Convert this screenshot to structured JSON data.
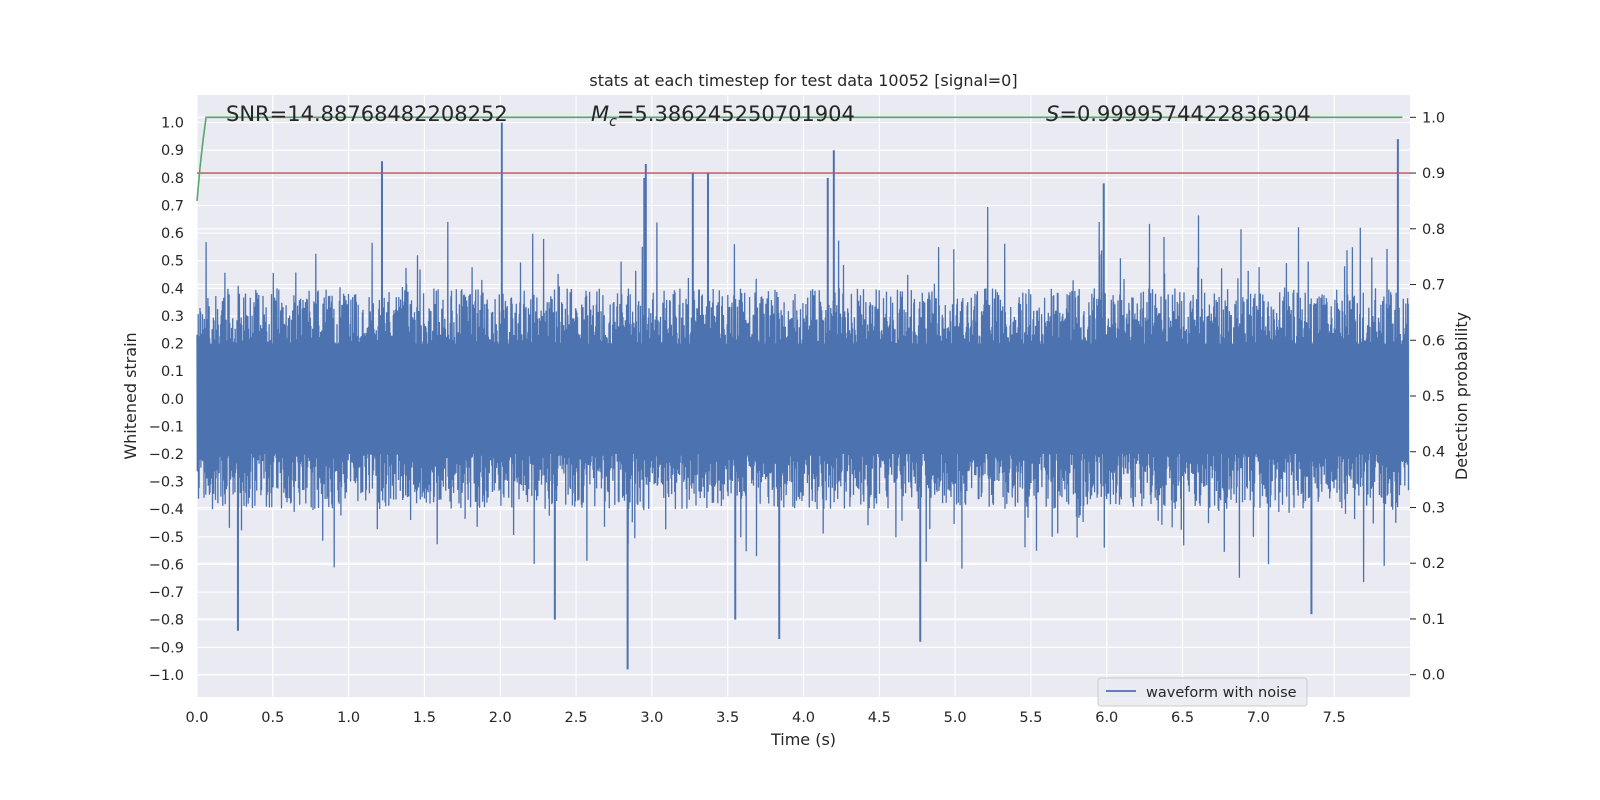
{
  "chart_data": {
    "type": "line",
    "title": "stats at each timestep for test data 10052 [signal=0]",
    "xlabel": "Time (s)",
    "ylabel": "Whitened strain",
    "y2label": "Detection probability",
    "xlim": [
      0.0,
      8.0
    ],
    "ylim": [
      -1.08,
      1.1
    ],
    "y2lim": [
      -0.04,
      1.04
    ],
    "xticks": [
      0.0,
      0.5,
      1.0,
      1.5,
      2.0,
      2.5,
      3.0,
      3.5,
      4.0,
      4.5,
      5.0,
      5.5,
      6.0,
      6.5,
      7.0,
      7.5
    ],
    "xtick_labels": [
      "0.0",
      "0.5",
      "1.0",
      "1.5",
      "2.0",
      "2.5",
      "3.0",
      "3.5",
      "4.0",
      "4.5",
      "5.0",
      "5.5",
      "6.0",
      "6.5",
      "7.0",
      "7.5"
    ],
    "yticks": [
      -1.0,
      -0.9,
      -0.8,
      -0.7,
      -0.6,
      -0.5,
      -0.4,
      -0.3,
      -0.2,
      -0.1,
      0.0,
      0.1,
      0.2,
      0.3,
      0.4,
      0.5,
      0.6,
      0.7,
      0.8,
      0.9,
      1.0
    ],
    "ytick_labels": [
      "−1.0",
      "−0.9",
      "−0.8",
      "−0.7",
      "−0.6",
      "−0.5",
      "−0.4",
      "−0.3",
      "−0.2",
      "−0.1",
      "0.0",
      "0.1",
      "0.2",
      "0.3",
      "0.4",
      "0.5",
      "0.6",
      "0.7",
      "0.8",
      "0.9",
      "1.0"
    ],
    "y2ticks": [
      0.0,
      0.1,
      0.2,
      0.3,
      0.4,
      0.5,
      0.6,
      0.7,
      0.8,
      0.9,
      1.0
    ],
    "y2tick_labels": [
      "0.0",
      "0.1",
      "0.2",
      "0.3",
      "0.4",
      "0.5",
      "0.6",
      "0.7",
      "0.8",
      "0.9",
      "1.0"
    ],
    "grid": true,
    "legend": {
      "entries": [
        "waveform with noise"
      ],
      "position": "lower-right"
    },
    "annotations": {
      "snr": "SNR=14.88768482208252",
      "mc_symbol": "M",
      "mc_subscript": "c",
      "mc_value": "=5.386245250701904",
      "s_symbol": "S",
      "s_value": "=0.9999574422836304"
    },
    "series": [
      {
        "name": "waveform with noise",
        "axis": "left",
        "style": "dense-noise",
        "color": "#4c72b0",
        "duration": 7.99,
        "core_amplitude": 0.2,
        "typical_envelope": 0.4,
        "peaks": [
          {
            "x": 1.22,
            "y": 0.86
          },
          {
            "x": 2.01,
            "y": 1.0
          },
          {
            "x": 2.96,
            "y": 0.85
          },
          {
            "x": 2.95,
            "y": 0.8
          },
          {
            "x": 3.27,
            "y": 0.82
          },
          {
            "x": 3.37,
            "y": 0.82
          },
          {
            "x": 4.16,
            "y": 0.8
          },
          {
            "x": 4.2,
            "y": 0.9
          },
          {
            "x": 5.98,
            "y": 0.78
          },
          {
            "x": 7.92,
            "y": 0.94
          },
          {
            "x": 0.27,
            "y": -0.84
          },
          {
            "x": 2.36,
            "y": -0.8
          },
          {
            "x": 2.84,
            "y": -0.98
          },
          {
            "x": 3.55,
            "y": -0.8
          },
          {
            "x": 3.84,
            "y": -0.87
          },
          {
            "x": 4.77,
            "y": -0.88
          },
          {
            "x": 7.35,
            "y": -0.78
          }
        ]
      },
      {
        "name": "detection probability",
        "axis": "right",
        "color": "#55a868",
        "x": [
          0.0,
          0.02,
          0.04,
          0.06,
          0.1,
          0.2,
          7.95
        ],
        "y": [
          0.85,
          0.91,
          0.96,
          1.0,
          1.0,
          1.0,
          1.0
        ]
      },
      {
        "name": "threshold",
        "axis": "right",
        "style": "hline",
        "color": "#c44e52",
        "y": 0.9
      }
    ]
  }
}
